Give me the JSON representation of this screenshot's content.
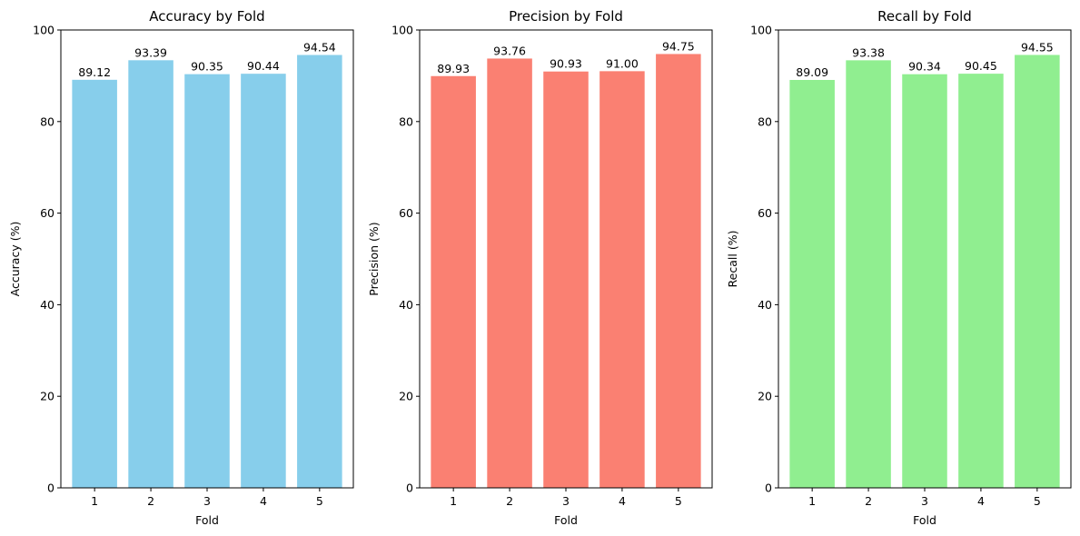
{
  "chart_data": [
    {
      "type": "bar",
      "title": "Accuracy by Fold",
      "xlabel": "Fold",
      "ylabel": "Accuracy (%)",
      "categories": [
        "1",
        "2",
        "3",
        "4",
        "5"
      ],
      "values": [
        89.12,
        93.39,
        90.35,
        90.44,
        94.54
      ],
      "value_labels": [
        "89.12",
        "93.39",
        "90.35",
        "90.44",
        "94.54"
      ],
      "ylim": [
        0,
        100
      ],
      "yticks": [
        0,
        20,
        40,
        60,
        80,
        100
      ],
      "color": "#87CEEB",
      "grid": false
    },
    {
      "type": "bar",
      "title": "Precision by Fold",
      "xlabel": "Fold",
      "ylabel": "Precision (%)",
      "categories": [
        "1",
        "2",
        "3",
        "4",
        "5"
      ],
      "values": [
        89.93,
        93.76,
        90.93,
        91.0,
        94.75
      ],
      "value_labels": [
        "89.93",
        "93.76",
        "90.93",
        "91.00",
        "94.75"
      ],
      "ylim": [
        0,
        100
      ],
      "yticks": [
        0,
        20,
        40,
        60,
        80,
        100
      ],
      "color": "#FA8072",
      "grid": false
    },
    {
      "type": "bar",
      "title": "Recall by Fold",
      "xlabel": "Fold",
      "ylabel": "Recall (%)",
      "categories": [
        "1",
        "2",
        "3",
        "4",
        "5"
      ],
      "values": [
        89.09,
        93.38,
        90.34,
        90.45,
        94.55
      ],
      "value_labels": [
        "89.09",
        "93.38",
        "90.34",
        "90.45",
        "94.55"
      ],
      "ylim": [
        0,
        100
      ],
      "yticks": [
        0,
        20,
        40,
        60,
        80,
        100
      ],
      "color": "#90EE90",
      "grid": false
    }
  ]
}
